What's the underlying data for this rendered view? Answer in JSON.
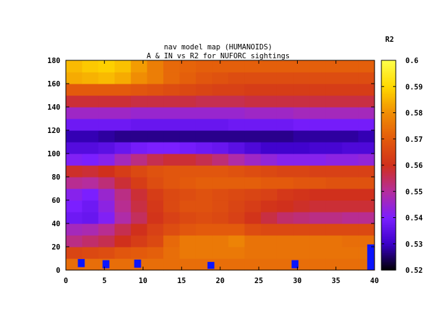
{
  "chart_data": {
    "type": "heatmap",
    "title": "nav model map (HUMANOIDS)",
    "subtitle": "A & IN vs R2 for NUFORC sightings",
    "xlabel": "",
    "ylabel": "",
    "xlim": [
      0,
      40
    ],
    "ylim": [
      0,
      180
    ],
    "x_ticks": [
      "0",
      "5",
      "10",
      "15",
      "20",
      "25",
      "30",
      "35",
      "40"
    ],
    "y_ticks": [
      "0",
      "20",
      "40",
      "60",
      "80",
      "100",
      "120",
      "140",
      "160",
      "180"
    ],
    "colorbar": {
      "label": "R2",
      "range": [
        0.52,
        0.6
      ],
      "ticks": [
        "0.52",
        "0.53",
        "0.54",
        "0.55",
        "0.56",
        "0.57",
        "0.58",
        "0.59",
        "0.6"
      ],
      "palette": [
        "#000000",
        "#3a00c8",
        "#7b1fff",
        "#b52d9e",
        "#d0301c",
        "#e35a0c",
        "#f08d04",
        "#ffd800",
        "#ffff4a"
      ]
    },
    "rows": [
      {
        "y0": 0,
        "y1": 10,
        "values": [
          0.574,
          0.574,
          0.574,
          0.574,
          0.574,
          0.574,
          0.574,
          0.574,
          0.574,
          0.574,
          0.574,
          0.574,
          0.574,
          0.574,
          0.574,
          0.574,
          0.574,
          0.574,
          0.574
        ]
      },
      {
        "y0": 10,
        "y1": 20,
        "values": [
          0.565,
          0.566,
          0.567,
          0.569,
          0.57,
          0.571,
          0.574,
          0.576,
          0.576,
          0.576,
          0.576,
          0.575,
          0.575,
          0.575,
          0.575,
          0.575,
          0.575,
          0.575,
          0.575
        ]
      },
      {
        "y0": 20,
        "y1": 30,
        "values": [
          0.552,
          0.554,
          0.556,
          0.56,
          0.563,
          0.566,
          0.573,
          0.576,
          0.576,
          0.576,
          0.578,
          0.575,
          0.575,
          0.575,
          0.575,
          0.575,
          0.575,
          0.574,
          0.574
        ]
      },
      {
        "y0": 30,
        "y1": 40,
        "values": [
          0.547,
          0.548,
          0.551,
          0.556,
          0.56,
          0.564,
          0.567,
          0.569,
          0.57,
          0.57,
          0.57,
          0.567,
          0.566,
          0.566,
          0.566,
          0.566,
          0.566,
          0.566,
          0.566
        ]
      },
      {
        "y0": 40,
        "y1": 50,
        "values": [
          0.538,
          0.537,
          0.541,
          0.549,
          0.555,
          0.561,
          0.564,
          0.566,
          0.567,
          0.566,
          0.564,
          0.561,
          0.557,
          0.554,
          0.553,
          0.552,
          0.552,
          0.551,
          0.551
        ]
      },
      {
        "y0": 50,
        "y1": 60,
        "values": [
          0.54,
          0.538,
          0.543,
          0.551,
          0.557,
          0.562,
          0.566,
          0.568,
          0.568,
          0.567,
          0.565,
          0.563,
          0.561,
          0.56,
          0.559,
          0.558,
          0.558,
          0.558,
          0.558
        ]
      },
      {
        "y0": 60,
        "y1": 70,
        "values": [
          0.542,
          0.54,
          0.545,
          0.552,
          0.558,
          0.563,
          0.566,
          0.567,
          0.568,
          0.567,
          0.566,
          0.565,
          0.564,
          0.562,
          0.561,
          0.56,
          0.56,
          0.56,
          0.56
        ]
      },
      {
        "y0": 70,
        "y1": 80,
        "values": [
          0.551,
          0.55,
          0.553,
          0.558,
          0.563,
          0.567,
          0.569,
          0.57,
          0.571,
          0.571,
          0.571,
          0.571,
          0.57,
          0.57,
          0.569,
          0.569,
          0.568,
          0.568,
          0.568
        ]
      },
      {
        "y0": 80,
        "y1": 90,
        "values": [
          0.559,
          0.558,
          0.56,
          0.563,
          0.566,
          0.568,
          0.569,
          0.569,
          0.569,
          0.569,
          0.568,
          0.567,
          0.566,
          0.565,
          0.565,
          0.564,
          0.564,
          0.564,
          0.564
        ]
      },
      {
        "y0": 90,
        "y1": 100,
        "values": [
          0.541,
          0.54,
          0.542,
          0.547,
          0.552,
          0.556,
          0.558,
          0.558,
          0.556,
          0.553,
          0.549,
          0.546,
          0.544,
          0.542,
          0.542,
          0.542,
          0.543,
          0.543,
          0.544
        ]
      },
      {
        "y0": 100,
        "y1": 110,
        "values": [
          0.534,
          0.534,
          0.535,
          0.537,
          0.539,
          0.54,
          0.54,
          0.539,
          0.538,
          0.537,
          0.535,
          0.533,
          0.531,
          0.531,
          0.531,
          0.532,
          0.532,
          0.533,
          0.533
        ]
      },
      {
        "y0": 110,
        "y1": 120,
        "values": [
          0.529,
          0.529,
          0.528,
          0.527,
          0.527,
          0.527,
          0.527,
          0.527,
          0.527,
          0.527,
          0.527,
          0.527,
          0.527,
          0.527,
          0.528,
          0.528,
          0.528,
          0.528,
          0.529
        ]
      },
      {
        "y0": 120,
        "y1": 130,
        "values": [
          0.538,
          0.538,
          0.538,
          0.538,
          0.537,
          0.537,
          0.537,
          0.537,
          0.537,
          0.537,
          0.538,
          0.538,
          0.538,
          0.538,
          0.539,
          0.539,
          0.539,
          0.539,
          0.539
        ]
      },
      {
        "y0": 130,
        "y1": 140,
        "values": [
          0.546,
          0.546,
          0.546,
          0.546,
          0.545,
          0.545,
          0.545,
          0.545,
          0.545,
          0.545,
          0.545,
          0.546,
          0.546,
          0.546,
          0.547,
          0.547,
          0.547,
          0.547,
          0.547
        ]
      },
      {
        "y0": 140,
        "y1": 150,
        "values": [
          0.558,
          0.558,
          0.558,
          0.558,
          0.557,
          0.557,
          0.557,
          0.557,
          0.556,
          0.556,
          0.556,
          0.557,
          0.557,
          0.557,
          0.557,
          0.557,
          0.557,
          0.557,
          0.557
        ]
      },
      {
        "y0": 150,
        "y1": 160,
        "values": [
          0.57,
          0.57,
          0.57,
          0.57,
          0.569,
          0.568,
          0.567,
          0.566,
          0.565,
          0.564,
          0.564,
          0.563,
          0.563,
          0.563,
          0.563,
          0.563,
          0.563,
          0.563,
          0.563
        ]
      },
      {
        "y0": 160,
        "y1": 170,
        "values": [
          0.584,
          0.585,
          0.586,
          0.584,
          0.58,
          0.577,
          0.573,
          0.571,
          0.569,
          0.568,
          0.567,
          0.567,
          0.567,
          0.567,
          0.567,
          0.567,
          0.567,
          0.567,
          0.567
        ]
      },
      {
        "y0": 170,
        "y1": 180,
        "values": [
          0.586,
          0.588,
          0.589,
          0.587,
          0.582,
          0.577,
          0.573,
          0.572,
          0.571,
          0.571,
          0.571,
          0.571,
          0.571,
          0.571,
          0.571,
          0.571,
          0.571,
          0.571,
          0.571
        ]
      }
    ],
    "markers": [
      {
        "x": 2,
        "y": 6,
        "h": 7
      },
      {
        "x": 5.2,
        "y": 5,
        "h": 7
      },
      {
        "x": 9.3,
        "y": 5.5,
        "h": 7
      },
      {
        "x": 18.8,
        "y": 4,
        "h": 6
      },
      {
        "x": 29.7,
        "y": 5,
        "h": 7
      },
      {
        "x": 39.5,
        "y": 11,
        "h": 22
      }
    ],
    "marker_color": "#0a14ff"
  }
}
